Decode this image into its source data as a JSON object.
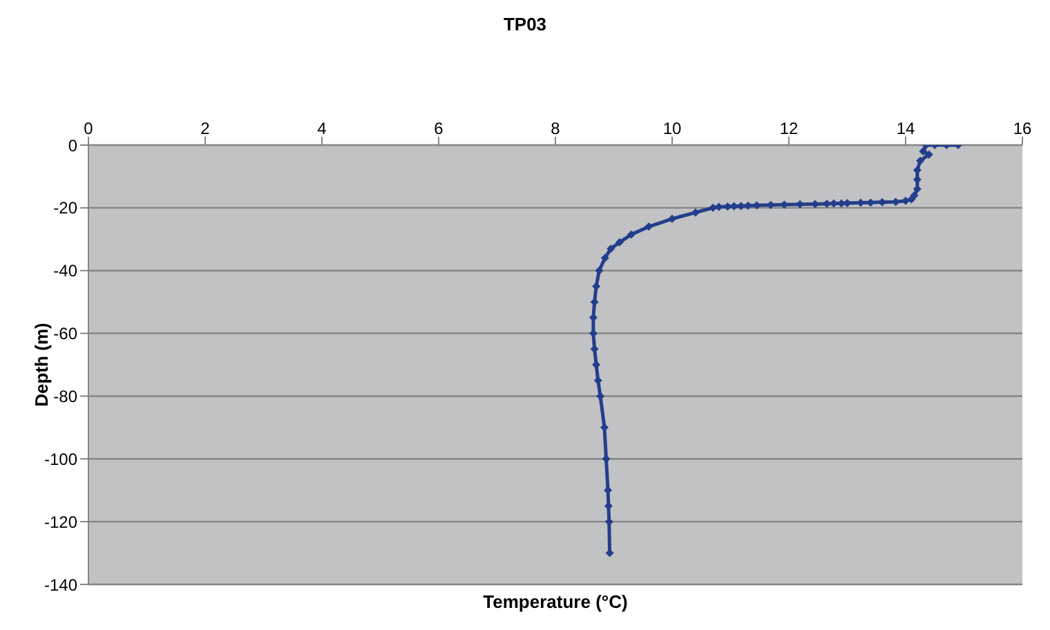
{
  "chart_data": {
    "type": "line",
    "title": "TP03",
    "xlabel": "Temperature (°C)",
    "ylabel": "Depth (m)",
    "marker": "diamond",
    "grid": "y",
    "xlim": [
      0,
      16
    ],
    "xticks": [
      0,
      2,
      4,
      6,
      8,
      10,
      12,
      14,
      16
    ],
    "ylim": [
      -140,
      0
    ],
    "yticks": [
      -140,
      -120,
      -100,
      -80,
      -60,
      -40,
      -20,
      0
    ],
    "series": [
      {
        "color": "#233e8b",
        "x": [
          14.9,
          14.7,
          14.5,
          14.35,
          14.3,
          14.4,
          14.25,
          14.2,
          14.2,
          14.2,
          14.15,
          14.1,
          14.0,
          13.83,
          13.6,
          13.4,
          13.23,
          13.0,
          12.9,
          12.77,
          12.65,
          12.45,
          12.19,
          11.92,
          11.69,
          11.45,
          11.3,
          11.18,
          11.06,
          10.95,
          10.8,
          10.7,
          10.4,
          10.0,
          9.6,
          9.3,
          9.1,
          8.95,
          8.85,
          8.75,
          8.7,
          8.67,
          8.65,
          8.65,
          8.67,
          8.7,
          8.73,
          8.77,
          8.84,
          8.87,
          8.9,
          8.91,
          8.92,
          8.93
        ],
        "values": [
          0,
          0,
          0,
          0,
          -2,
          -3,
          -5,
          -8,
          -11,
          -14,
          -16,
          -17.3,
          -17.8,
          -18.1,
          -18.2,
          -18.3,
          -18.4,
          -18.5,
          -18.6,
          -18.6,
          -18.7,
          -18.8,
          -18.9,
          -19,
          -19.1,
          -19.2,
          -19.3,
          -19.4,
          -19.5,
          -19.6,
          -19.7,
          -20,
          -21.5,
          -23.5,
          -26,
          -28.5,
          -31,
          -33,
          -36,
          -40,
          -45,
          -50,
          -55,
          -60,
          -65,
          -70,
          -75,
          -80,
          -90,
          -100,
          -110,
          -115,
          -120,
          -130
        ]
      }
    ]
  }
}
